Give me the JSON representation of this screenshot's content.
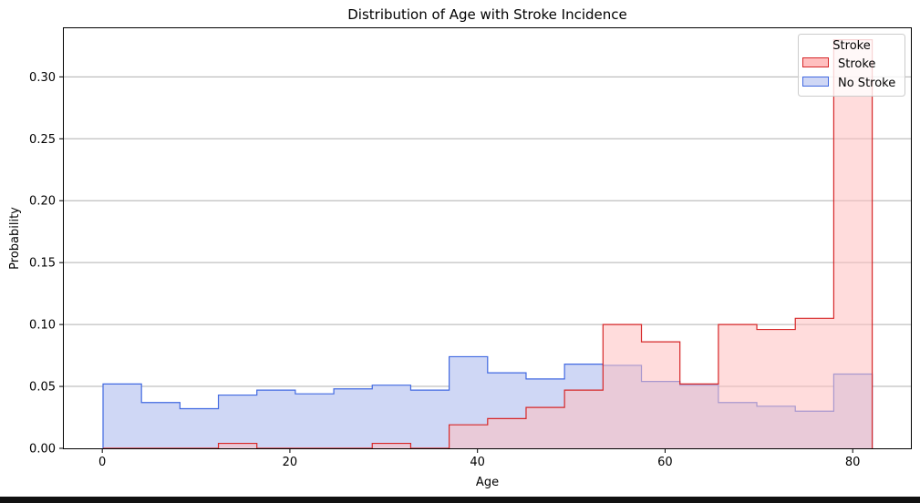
{
  "chart_data": {
    "type": "histogram",
    "title": "Distribution of Age with Stroke Incidence",
    "xlabel": "Age",
    "ylabel": "Probability",
    "xlim": [
      -4.1,
      86.3
    ],
    "ylim": [
      0,
      0.34
    ],
    "x_ticks": [
      0,
      20,
      40,
      60,
      80
    ],
    "x_tick_labels": [
      "0",
      "20",
      "40",
      "60",
      "80"
    ],
    "y_ticks": [
      0,
      0.05,
      0.1,
      0.15,
      0.2,
      0.25,
      0.3
    ],
    "y_tick_labels": [
      "0.00",
      "0.05",
      "0.10",
      "0.15",
      "0.20",
      "0.25",
      "0.30"
    ],
    "grid": "horizontal",
    "legend_position": "top-right",
    "legend_title": "Stroke",
    "bin_edges": [
      0.08,
      4.18,
      8.28,
      12.38,
      16.48,
      20.58,
      24.68,
      28.78,
      32.88,
      36.98,
      41.08,
      45.18,
      49.28,
      53.38,
      57.48,
      61.58,
      65.68,
      69.78,
      73.88,
      77.98,
      82.08
    ],
    "series": [
      {
        "name": "Stroke",
        "color": "#d62728",
        "fill": "#ffbfbf",
        "values": [
          0,
          0,
          0,
          0.004,
          0,
          0,
          0,
          0.004,
          0,
          0.019,
          0.024,
          0.033,
          0.047,
          0.1,
          0.086,
          0.052,
          0.1,
          0.096,
          0.105,
          0.33
        ]
      },
      {
        "name": "No Stroke",
        "color": "#4169e1",
        "fill": "#cfd7f5",
        "values": [
          0.052,
          0.037,
          0.032,
          0.043,
          0.047,
          0.044,
          0.048,
          0.051,
          0.047,
          0.074,
          0.061,
          0.056,
          0.068,
          0.067,
          0.054,
          0.051,
          0.037,
          0.034,
          0.03,
          0.06
        ]
      }
    ]
  }
}
